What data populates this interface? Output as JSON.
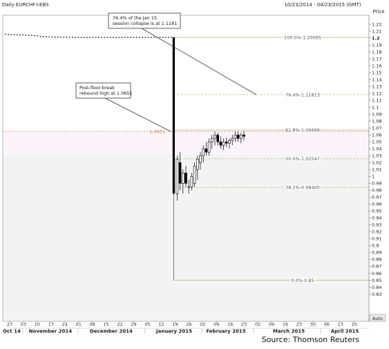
{
  "header": {
    "left_title": "Daily EURCHF=EBS",
    "date_range": "10/23/2014 - 04/23/2015 (GMT)",
    "axis_title": "Price",
    "auto_label": "Auto"
  },
  "source": "Source: Thomson Reuters",
  "colors": {
    "plot_bg": "#ffffff",
    "shade_top": "#fbf4fb",
    "shade_bottom": "#f3f3f3",
    "fib_line": "#c8c59a",
    "highlight": "#d08040",
    "candle": "#000000"
  },
  "chart_data": {
    "type": "candlestick",
    "y_axis": {
      "label": "Price",
      "min": 0.83,
      "max": 1.22,
      "ticks": [
        1.22,
        1.21,
        1.2,
        1.19,
        1.18,
        1.17,
        1.16,
        1.15,
        1.14,
        1.13,
        1.12,
        1.11,
        1.1,
        1.09,
        1.08,
        1.07,
        1.06,
        1.05,
        1.04,
        1.03,
        1.02,
        1.01,
        1,
        0.99,
        0.98,
        0.97,
        0.96,
        0.95,
        0.94,
        0.93,
        0.92,
        0.91,
        0.9,
        0.89,
        0.88,
        0.87,
        0.86,
        0.85,
        0.84,
        0.83
      ],
      "tick_labels": [
        "1.22",
        "1.21",
        "1.2",
        "1.19",
        "1.18",
        "1.17",
        "1.16",
        "1.15",
        "1.14",
        "1.13",
        "1.12",
        "1.11",
        "1.1",
        "1.09",
        "1.08",
        "1.07",
        "1.06",
        "1.05",
        "1.04",
        "1.03",
        "1.02",
        "1.01",
        "1",
        "0.99",
        "0.98",
        "0.97",
        "0.96",
        "0.95",
        "0.94",
        "0.93",
        "0.92",
        "0.91",
        "0.9",
        "0.89",
        "0.88",
        "0.87",
        "0.86",
        "0.85",
        "0.84",
        "0.83"
      ]
    },
    "x_axis": {
      "day_ticks": [
        "27",
        "03",
        "10",
        "17",
        "24",
        "01",
        "08",
        "15",
        "22",
        "29",
        "05",
        "12",
        "19",
        "26",
        "02",
        "09",
        "16",
        "23",
        "02",
        "09",
        "16",
        "23",
        "30",
        "06",
        "13",
        "20"
      ],
      "month_labels": [
        "Oct 14",
        "November 2014",
        "December 2014",
        "January 2015",
        "February 2015",
        "March 2015",
        "April 2015"
      ]
    },
    "fibonacci_levels": [
      {
        "label": "100.0%-1.20095",
        "value": 1.20095
      },
      {
        "label": "76.4%-1.11813",
        "value": 1.11813
      },
      {
        "label": "61.8%-1.06689",
        "value": 1.06689
      },
      {
        "label": "50.0%-1.02547",
        "value": 1.02547
      },
      {
        "label": "38.2%-0.98405",
        "value": 0.98405
      },
      {
        "label": "0.0%-0.85",
        "value": 0.85
      }
    ],
    "highlight_level": {
      "label": "1.0651",
      "value": 1.0651
    },
    "pre_floor_close": [
      1.2055,
      1.2052,
      1.2048,
      1.205,
      1.2046,
      1.2044,
      1.2045,
      1.2041,
      1.2038,
      1.2037,
      1.2034,
      1.2032,
      1.2025,
      1.2022,
      1.2019,
      1.2016,
      1.2014,
      1.2012,
      1.2015,
      1.2013,
      1.2011,
      1.2012,
      1.201,
      1.2011,
      1.2009,
      1.201,
      1.2009,
      1.201,
      1.2009,
      1.201,
      1.2009,
      1.2009,
      1.201,
      1.2009,
      1.201,
      1.2009,
      1.201,
      1.2009,
      1.2009,
      1.201,
      1.2009,
      1.201,
      1.2009,
      1.201,
      1.2009,
      1.201,
      1.2009,
      1.201,
      1.2009,
      1.201,
      1.2009,
      1.201,
      1.2009,
      1.201,
      1.201,
      1.2009,
      1.201,
      1.2009
    ],
    "floor_break_day": {
      "open": 1.2009,
      "high": 1.201,
      "low": 0.85,
      "close": 0.975
    },
    "post_floor_candles": [
      {
        "open": 0.975,
        "high": 1.03,
        "low": 0.965,
        "close": 1.025
      },
      {
        "open": 1.02,
        "high": 1.035,
        "low": 0.98,
        "close": 0.99
      },
      {
        "open": 0.99,
        "high": 1.01,
        "low": 0.975,
        "close": 1.005
      },
      {
        "open": 1.005,
        "high": 1.015,
        "low": 0.985,
        "close": 0.99
      },
      {
        "open": 0.985,
        "high": 0.995,
        "low": 0.975,
        "close": 0.985
      },
      {
        "open": 0.985,
        "high": 1.005,
        "low": 0.98,
        "close": 1.0
      },
      {
        "open": 0.99,
        "high": 1.02,
        "low": 0.985,
        "close": 1.015
      },
      {
        "open": 1.01,
        "high": 1.03,
        "low": 0.995,
        "close": 1.025
      },
      {
        "open": 1.02,
        "high": 1.035,
        "low": 1.01,
        "close": 1.03
      },
      {
        "open": 1.03,
        "high": 1.045,
        "low": 1.02,
        "close": 1.04
      },
      {
        "open": 1.04,
        "high": 1.05,
        "low": 1.03,
        "close": 1.035
      },
      {
        "open": 1.035,
        "high": 1.055,
        "low": 1.03,
        "close": 1.05
      },
      {
        "open": 1.05,
        "high": 1.06,
        "low": 1.04,
        "close": 1.055
      },
      {
        "open": 1.055,
        "high": 1.065,
        "low": 1.045,
        "close": 1.06
      },
      {
        "open": 1.06,
        "high": 1.063,
        "low": 1.045,
        "close": 1.05
      },
      {
        "open": 1.05,
        "high": 1.058,
        "low": 1.04,
        "close": 1.045
      },
      {
        "open": 1.045,
        "high": 1.055,
        "low": 1.038,
        "close": 1.05
      },
      {
        "open": 1.05,
        "high": 1.056,
        "low": 1.042,
        "close": 1.048
      },
      {
        "open": 1.048,
        "high": 1.055,
        "low": 1.04,
        "close": 1.052
      },
      {
        "open": 1.052,
        "high": 1.06,
        "low": 1.045,
        "close": 1.055
      },
      {
        "open": 1.055,
        "high": 1.065,
        "low": 1.05,
        "close": 1.06
      },
      {
        "open": 1.06,
        "high": 1.0651,
        "low": 1.05,
        "close": 1.055
      },
      {
        "open": 1.055,
        "high": 1.063,
        "low": 1.048,
        "close": 1.06
      },
      {
        "open": 1.06,
        "high": 1.066,
        "low": 1.052,
        "close": 1.058
      }
    ],
    "annotations": [
      {
        "text": [
          "76.4% of the Jan 15",
          "session collapse is at 1.1181"
        ],
        "points_to": 1.1181
      },
      {
        "text": [
          "Post-floor-break",
          "rebound high at 1.0651"
        ],
        "points_to": 1.0651
      }
    ]
  }
}
